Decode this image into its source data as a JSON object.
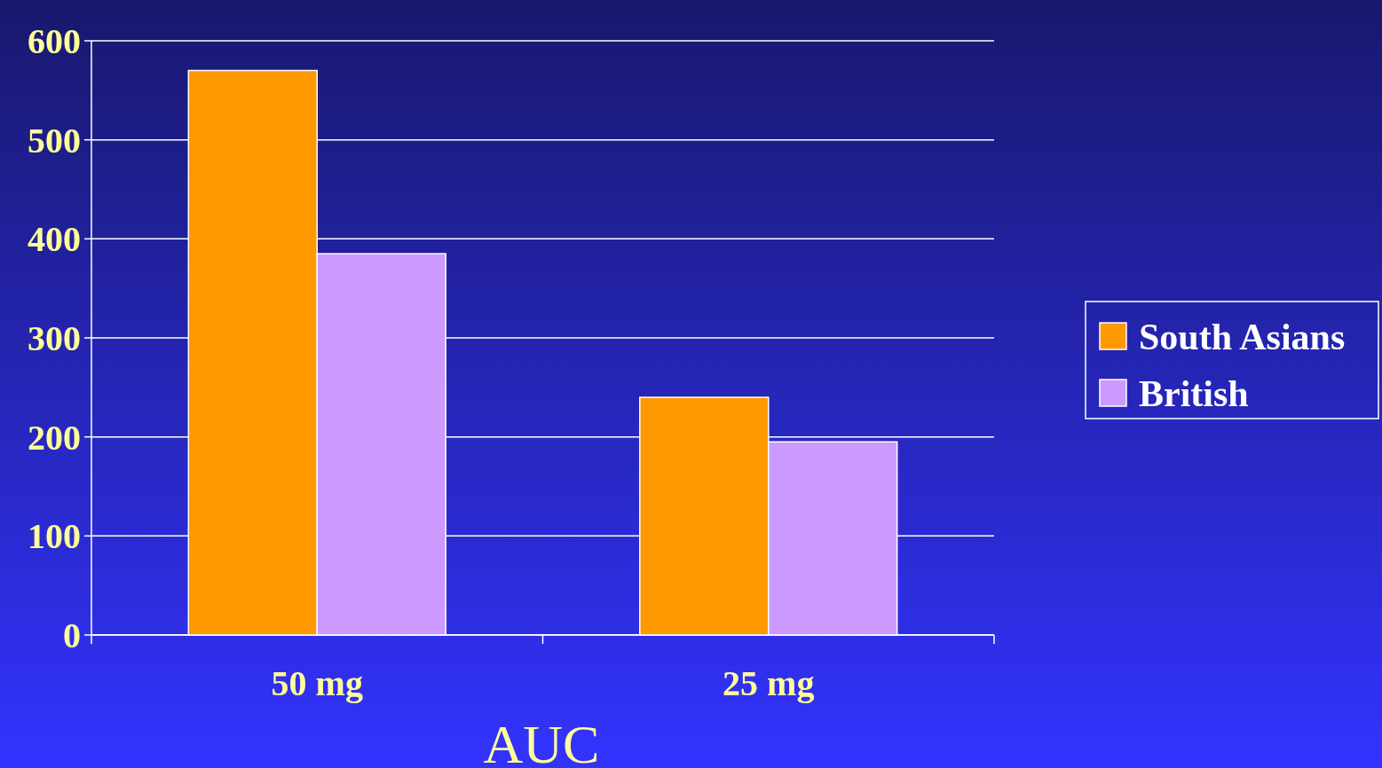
{
  "chart_data": {
    "type": "bar",
    "xlabel": "AUC",
    "categories": [
      "50 mg",
      "25 mg"
    ],
    "series": [
      {
        "name": "South Asians",
        "color": "#ff9900",
        "values": [
          570,
          240
        ]
      },
      {
        "name": "British",
        "color": "#cc99ff",
        "values": [
          385,
          195
        ]
      }
    ],
    "ylim": [
      0,
      600
    ],
    "yticks": [
      0,
      100,
      200,
      300,
      400,
      500,
      600
    ],
    "grid": "y",
    "legend": "right"
  }
}
